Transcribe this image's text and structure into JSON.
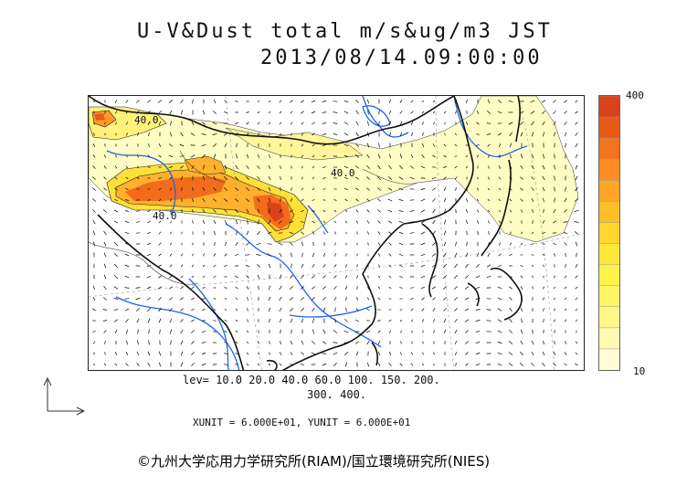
{
  "title": {
    "line1": "U-V&Dust total m/s&ug/m3 JST",
    "line2": "2013/08/14.09:00:00"
  },
  "colorbar": {
    "max_label": "400",
    "min_label": "10",
    "colors": [
      "#fffdd8",
      "#fffbb0",
      "#fff78a",
      "#fff566",
      "#fff24a",
      "#ffe83a",
      "#ffd52e",
      "#ffbe2a",
      "#ffa626",
      "#ff8c22",
      "#f5731e",
      "#e85a18",
      "#d8431a"
    ]
  },
  "contour_labels": {
    "a": "40.0",
    "b": "40.0",
    "c": "40.0"
  },
  "legend": {
    "levels_line1": "lev= 10.0 20.0 40.0 60.0 100. 150. 200.",
    "levels_line2": "300. 400.",
    "units": "XUNIT = 6.000E+01, YUNIT = 6.000E+01"
  },
  "copyright": "©九州大学応用力学研究所(RIAM)/国立環境研究所(NIES)"
}
